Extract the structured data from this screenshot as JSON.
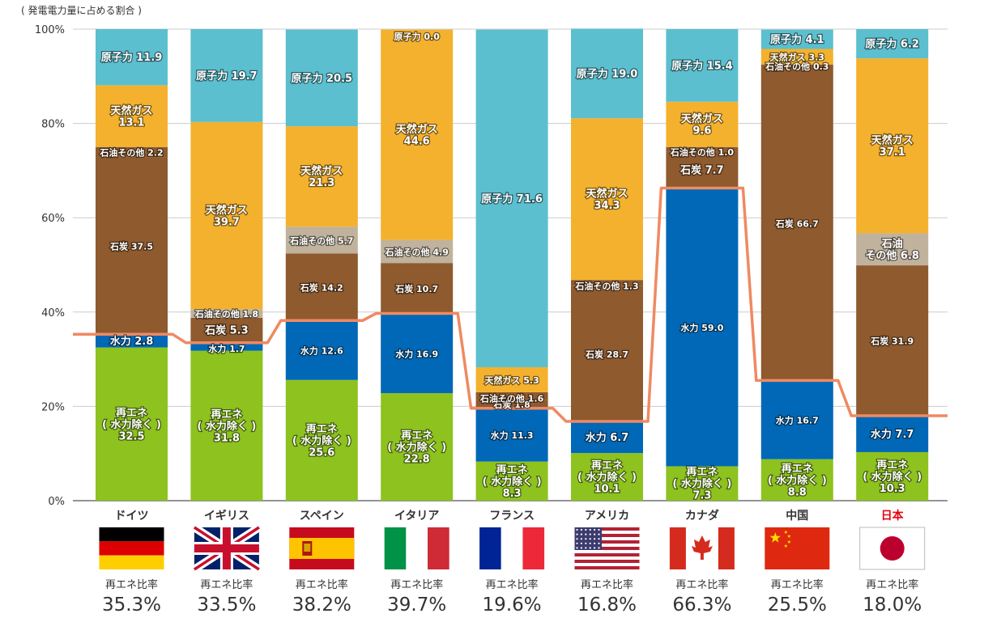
{
  "chart_data": {
    "type": "bar",
    "stacked": true,
    "title": "( 発電電力量に占める割合 )",
    "y_ticks": [
      "100%",
      "80%",
      "60%",
      "40%",
      "20%",
      "0%"
    ],
    "ylim": [
      0,
      100
    ],
    "grid": true,
    "renewable_ratio_label": "再エネ比率",
    "colors": {
      "renew": "#8dc21f",
      "hydro": "#0068b7",
      "coal": "#8e5a2e",
      "oil": "#c0b29c",
      "gas": "#f4b12e",
      "nuclear": "#5bbfcf",
      "line": "#ef8a62",
      "japan_label": "#e30613"
    },
    "countries": [
      {
        "name": "ドイツ",
        "flag": "germany-flag",
        "ratio": "35.3%",
        "ratio_value": 35.3,
        "segments": [
          {
            "type": "renew",
            "value": 32.5,
            "label": "再エネ\n( 水力除く )\n32.5"
          },
          {
            "type": "hydro",
            "value": 2.8,
            "label": "水力 2.8"
          },
          {
            "type": "coal",
            "value": 37.5,
            "label": "石炭 37.5"
          },
          {
            "type": "coal",
            "value": 2.2,
            "label": "石油その他 2.2"
          },
          {
            "type": "gas",
            "value": 13.1,
            "label": "天然ガス\n13.1"
          },
          {
            "type": "nuclear",
            "value": 11.9,
            "label": "原子力 11.9"
          }
        ]
      },
      {
        "name": "イギリス",
        "flag": "uk-flag",
        "ratio": "33.5%",
        "ratio_value": 33.5,
        "segments": [
          {
            "type": "renew",
            "value": 31.8,
            "label": "再エネ\n( 水力除く )\n31.8"
          },
          {
            "type": "hydro",
            "value": 1.7,
            "label": "水力 1.7"
          },
          {
            "type": "coal",
            "value": 5.3,
            "label": "石炭 5.3"
          },
          {
            "type": "oil",
            "value": 1.8,
            "label": "石油その他 1.8"
          },
          {
            "type": "gas",
            "value": 39.7,
            "label": "天然ガス\n39.7"
          },
          {
            "type": "nuclear",
            "value": 19.7,
            "label": "原子力 19.7"
          }
        ]
      },
      {
        "name": "スペイン",
        "flag": "spain-flag",
        "ratio": "38.2%",
        "ratio_value": 38.2,
        "segments": [
          {
            "type": "renew",
            "value": 25.6,
            "label": "再エネ\n( 水力除く )\n25.6"
          },
          {
            "type": "hydro",
            "value": 12.6,
            "label": "水力 12.6"
          },
          {
            "type": "coal",
            "value": 14.2,
            "label": "石炭 14.2"
          },
          {
            "type": "oil",
            "value": 5.7,
            "label": "石油その他 5.7"
          },
          {
            "type": "gas",
            "value": 21.3,
            "label": "天然ガス\n21.3"
          },
          {
            "type": "nuclear",
            "value": 20.5,
            "label": "原子力 20.5"
          }
        ]
      },
      {
        "name": "イタリア",
        "flag": "italy-flag",
        "ratio": "39.7%",
        "ratio_value": 39.7,
        "segments": [
          {
            "type": "renew",
            "value": 22.8,
            "label": "再エネ\n( 水力除く )\n22.8"
          },
          {
            "type": "hydro",
            "value": 16.9,
            "label": "水力 16.9"
          },
          {
            "type": "coal",
            "value": 10.7,
            "label": "石炭 10.7"
          },
          {
            "type": "oil",
            "value": 4.9,
            "label": "石油その他 4.9"
          },
          {
            "type": "gas",
            "value": 44.6,
            "label": "天然ガス\n44.6"
          },
          {
            "type": "nuclear",
            "value": 0.0,
            "label": "原子力 0.0"
          }
        ]
      },
      {
        "name": "フランス",
        "flag": "france-flag",
        "ratio": "19.6%",
        "ratio_value": 19.6,
        "segments": [
          {
            "type": "renew",
            "value": 8.3,
            "label": "再エネ\n( 水力除く )\n8.3"
          },
          {
            "type": "hydro",
            "value": 11.3,
            "label": "水力 11.3"
          },
          {
            "type": "coal",
            "value": 1.8,
            "label": "石炭 1.8"
          },
          {
            "type": "coal",
            "value": 1.6,
            "label": "石油その他 1.6"
          },
          {
            "type": "gas",
            "value": 5.3,
            "label": "天然ガス 5.3"
          },
          {
            "type": "nuclear",
            "value": 71.6,
            "label": "原子力 71.6"
          }
        ]
      },
      {
        "name": "アメリカ",
        "flag": "usa-flag",
        "ratio": "16.8%",
        "ratio_value": 16.8,
        "segments": [
          {
            "type": "renew",
            "value": 10.1,
            "label": "再エネ\n( 水力除く )\n10.1"
          },
          {
            "type": "hydro",
            "value": 6.7,
            "label": "水力 6.7"
          },
          {
            "type": "coal",
            "value": 28.7,
            "label": "石炭 28.7"
          },
          {
            "type": "coal",
            "value": 1.3,
            "label": "石油その他 1.3"
          },
          {
            "type": "gas",
            "value": 34.3,
            "label": "天然ガス\n34.3"
          },
          {
            "type": "nuclear",
            "value": 19.0,
            "label": "原子力 19.0"
          }
        ]
      },
      {
        "name": "カナダ",
        "flag": "canada-flag",
        "ratio": "66.3%",
        "ratio_value": 66.3,
        "segments": [
          {
            "type": "renew",
            "value": 7.3,
            "label": "再エネ\n( 水力除く )\n7.3"
          },
          {
            "type": "hydro",
            "value": 59.0,
            "label": "水力 59.0"
          },
          {
            "type": "coal",
            "value": 7.7,
            "label": "石炭 7.7"
          },
          {
            "type": "coal",
            "value": 1.0,
            "label": "石油その他 1.0"
          },
          {
            "type": "gas",
            "value": 9.6,
            "label": "天然ガス\n9.6"
          },
          {
            "type": "nuclear",
            "value": 15.4,
            "label": "原子力 15.4"
          }
        ]
      },
      {
        "name": "中国",
        "flag": "china-flag",
        "ratio": "25.5%",
        "ratio_value": 25.5,
        "segments": [
          {
            "type": "renew",
            "value": 8.8,
            "label": "再エネ\n( 水力除く )\n8.8"
          },
          {
            "type": "hydro",
            "value": 16.7,
            "label": "水力 16.7"
          },
          {
            "type": "coal",
            "value": 66.7,
            "label": "石炭 66.7"
          },
          {
            "type": "coal",
            "value": 0.3,
            "label": "石油その他 0.3"
          },
          {
            "type": "gas",
            "value": 3.3,
            "label": "天然ガス 3.3"
          },
          {
            "type": "nuclear",
            "value": 4.1,
            "label": "原子力 4.1"
          }
        ]
      },
      {
        "name": "日本",
        "flag": "japan-flag",
        "ratio": "18.0%",
        "ratio_value": 18.0,
        "highlight": true,
        "segments": [
          {
            "type": "renew",
            "value": 10.3,
            "label": "再エネ\n( 水力除く )\n10.3"
          },
          {
            "type": "hydro",
            "value": 7.7,
            "label": "水力 7.7"
          },
          {
            "type": "coal",
            "value": 31.9,
            "label": "石炭 31.9"
          },
          {
            "type": "oil",
            "value": 6.8,
            "label": "石油\nその他 6.8"
          },
          {
            "type": "gas",
            "value": 37.1,
            "label": "天然ガス\n37.1"
          },
          {
            "type": "nuclear",
            "value": 6.2,
            "label": "原子力 6.2"
          }
        ]
      }
    ]
  }
}
